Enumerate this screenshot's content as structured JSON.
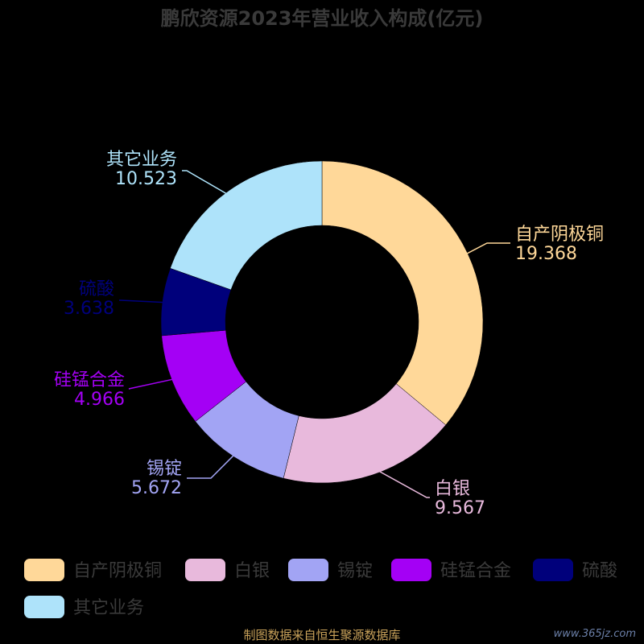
{
  "chart_data": {
    "type": "pie",
    "title": "鹏欣资源2023年营业收入构成(亿元)",
    "unit": "亿元",
    "categories": [
      "自产阴极铜",
      "白银",
      "锡锭",
      "硅锰合金",
      "硫酸",
      "其它业务"
    ],
    "values": [
      19.368,
      9.567,
      5.672,
      4.966,
      3.638,
      10.523
    ],
    "value_labels": [
      "19.368",
      "9.567",
      "5.672",
      "4.966",
      "3.638",
      "10.523"
    ],
    "colors": [
      "#FFD899",
      "#E8B9DC",
      "#A2A4F4",
      "#A400F5",
      "#00007B",
      "#AEE3FA"
    ],
    "donut": true,
    "legend_position": "bottom"
  },
  "footer": {
    "source": "制图数据来自恒生聚源数据库",
    "watermark": "www.365jz.com"
  }
}
